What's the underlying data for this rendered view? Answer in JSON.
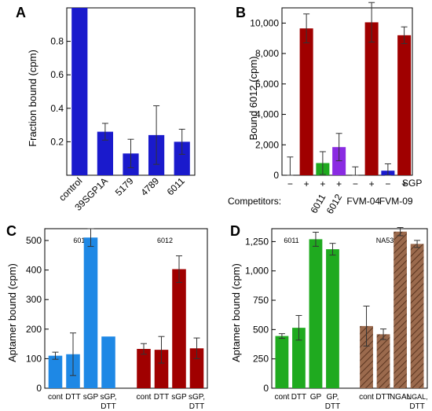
{
  "colors": {
    "navy": "#1a1acc",
    "darkred": "#a00000",
    "green": "#1faa1f",
    "purple": "#8a2be2",
    "blue": "#1e88e5",
    "brown": "#9b6a4d"
  },
  "chart_data": [
    {
      "panel": "A",
      "type": "bar",
      "ylabel": "Fraction bound (cpm)",
      "ylim": [
        0,
        1.0
      ],
      "yticks": [
        0.2,
        0.4,
        0.6,
        0.8
      ],
      "yticklabels": [
        "0.2",
        "0.4",
        "0.6",
        "0.8"
      ],
      "categories": [
        "control",
        "39SGP1A",
        "5179",
        "4789",
        "6011"
      ],
      "values": [
        1.0,
        0.26,
        0.13,
        0.24,
        0.2
      ],
      "errors": [
        0.0,
        0.05,
        0.085,
        0.175,
        0.075
      ],
      "color": "#1a1acc"
    },
    {
      "panel": "B",
      "type": "bar",
      "ylabel": "Bound 6012 (cpm)",
      "ylim": [
        0,
        11000
      ],
      "yticks": [
        0,
        2000,
        4000,
        6000,
        8000,
        10000
      ],
      "yticklabels": [
        "0",
        "2,000",
        "4,000",
        "6,000",
        "8,000",
        "10,000"
      ],
      "sgp_label": "SGP",
      "competitors_label": "Competitors:",
      "signs": [
        "−",
        "+",
        "+",
        "+",
        "−",
        "+",
        "−",
        "+"
      ],
      "competitor_names": [
        "6011",
        "6012",
        "FVM-04",
        "FVM-09"
      ],
      "bars": [
        {
          "value": 0,
          "error": 1200,
          "color": "#1a1acc"
        },
        {
          "value": 9650,
          "error": 950,
          "color": "#a00000"
        },
        {
          "value": 800,
          "error": 750,
          "color": "#1faa1f"
        },
        {
          "value": 1850,
          "error": 900,
          "color": "#8a2be2"
        },
        {
          "value": 0,
          "error": 550,
          "color": "#1a1acc"
        },
        {
          "value": 10050,
          "error": 1300,
          "color": "#a00000"
        },
        {
          "value": 300,
          "error": 450,
          "color": "#1a1acc"
        },
        {
          "value": 9200,
          "error": 550,
          "color": "#a00000"
        }
      ]
    },
    {
      "panel": "C",
      "type": "bar",
      "ylabel": "Aptamer bound (cpm)",
      "ylim": [
        0,
        540
      ],
      "yticks": [
        0,
        100,
        200,
        300,
        400,
        500
      ],
      "yticklabels": [
        "0",
        "100",
        "200",
        "300",
        "400",
        "500"
      ],
      "groups": [
        {
          "name": "6011",
          "color": "#1e88e5",
          "categories": [
            "cont",
            "DTT",
            "sGP",
            "sGP,\nDTT"
          ],
          "values": [
            110,
            115,
            510,
            175
          ],
          "errors": [
            12,
            72,
            30,
            0
          ]
        },
        {
          "name": "6012",
          "color": "#a00000",
          "categories": [
            "cont",
            "DTT",
            "sGP",
            "sGP,\nDTT"
          ],
          "values": [
            133,
            130,
            403,
            135
          ],
          "errors": [
            18,
            45,
            45,
            35
          ]
        }
      ]
    },
    {
      "panel": "D",
      "type": "bar",
      "ylabel": "Aptamer bound (cpm)",
      "ylim": [
        0,
        1360
      ],
      "yticks": [
        0,
        250,
        500,
        750,
        1000,
        1250
      ],
      "yticklabels": [
        "0",
        "250",
        "500",
        "750",
        "1,000",
        "1,250"
      ],
      "groups": [
        {
          "name": "6011",
          "color": "#1faa1f",
          "categories": [
            "cont",
            "DTT",
            "GP",
            "GP,\nDTT"
          ],
          "values": [
            445,
            515,
            1270,
            1185
          ],
          "errors": [
            20,
            105,
            60,
            50
          ]
        },
        {
          "name": "NA53",
          "color": "#9b6a4d",
          "hatched": true,
          "categories": [
            "cont",
            "DTT",
            "NGAL",
            "NGAL,\nDTT"
          ],
          "values": [
            530,
            460,
            1335,
            1230
          ],
          "errors": [
            170,
            45,
            35,
            30
          ]
        }
      ]
    }
  ]
}
